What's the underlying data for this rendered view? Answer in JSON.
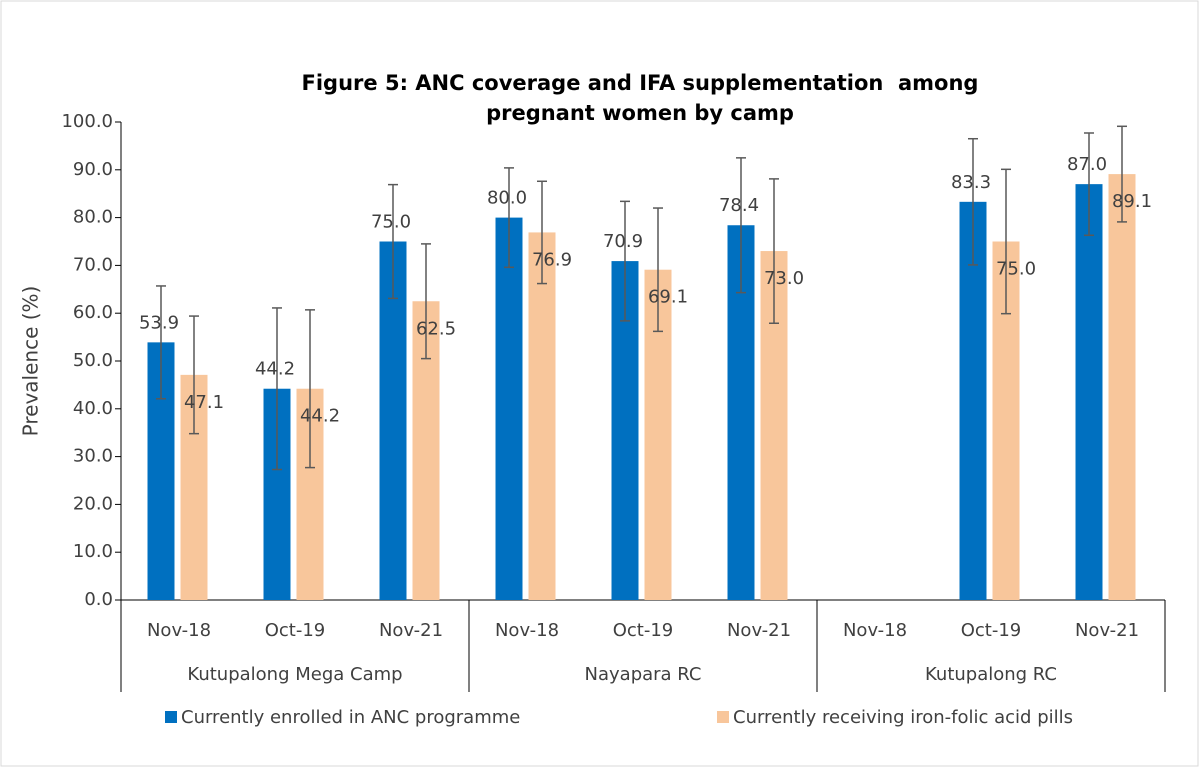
{
  "chart_data": {
    "type": "bar",
    "title": "Figure 5: ANC coverage and IFA supplementation  among pregnant women by camp",
    "y_label": "Prevalence (%)",
    "categories": [
      "Nov-18",
      "Oct-19",
      "Nov-21",
      "Nov-18",
      "Oct-19",
      "Nov-21",
      "Nov-18",
      "Oct-19",
      "Nov-21"
    ],
    "groups": [
      "Kutupalong Mega Camp",
      "Nayapara RC",
      "Kutupalong RC"
    ],
    "series": [
      {
        "name": "Currently enrolled in ANC programme",
        "color": "#0070c0",
        "values": [
          53.9,
          44.2,
          75.0,
          80.0,
          70.9,
          78.4,
          null,
          83.3,
          87.0
        ],
        "value_labels": [
          "53.9",
          "44.2",
          "75.0",
          "80.0",
          "70.9",
          "78.4",
          null,
          "83.3",
          "87.0"
        ],
        "errors": [
          11.8,
          16.9,
          11.9,
          10.4,
          12.5,
          14.1,
          null,
          13.2,
          10.7
        ]
      },
      {
        "name": "Currently receiving iron-folic acid pills",
        "color": "#f8c69b",
        "values": [
          47.1,
          44.2,
          62.5,
          76.9,
          69.1,
          73.0,
          null,
          75.0,
          89.1
        ],
        "value_labels": [
          "47.1",
          "44.2",
          "62.5",
          "76.9",
          "69.1",
          "73.0",
          null,
          "75.0",
          "89.1"
        ],
        "errors": [
          12.3,
          16.5,
          12.0,
          10.7,
          12.9,
          15.1,
          null,
          15.1,
          10.0
        ]
      }
    ],
    "ylim": [
      0,
      100
    ],
    "yticks": [
      {
        "value": 0,
        "label": "0.0"
      },
      {
        "value": 10,
        "label": "10.0"
      },
      {
        "value": 20,
        "label": "20.0"
      },
      {
        "value": 30,
        "label": "30.0"
      },
      {
        "value": 40,
        "label": "40.0"
      },
      {
        "value": 50,
        "label": "50.0"
      },
      {
        "value": 60,
        "label": "60.0"
      },
      {
        "value": 70,
        "label": "70.0"
      },
      {
        "value": 80,
        "label": "80.0"
      },
      {
        "value": 90,
        "label": "90.0"
      },
      {
        "value": 100,
        "label": "100.0"
      }
    ],
    "grid": false,
    "legend": "bottom"
  }
}
